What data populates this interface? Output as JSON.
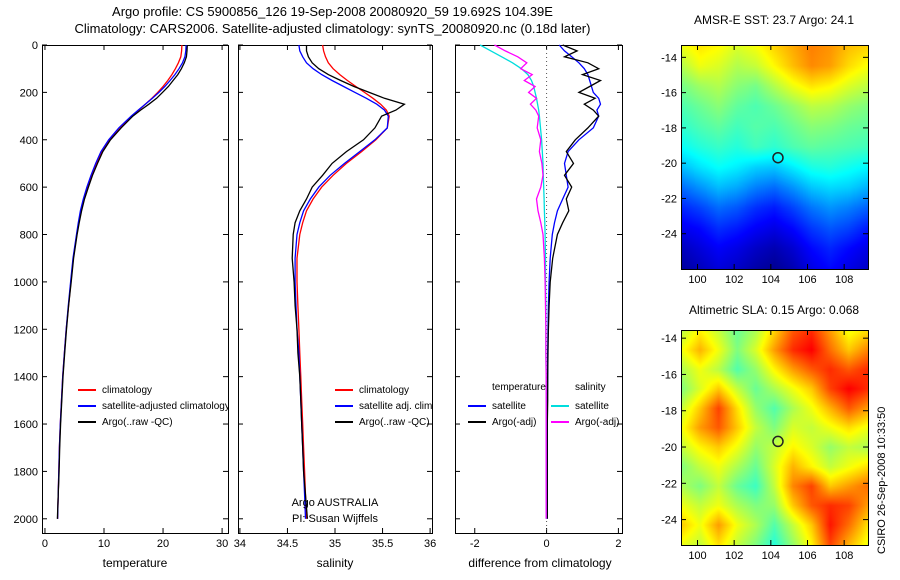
{
  "header": {
    "title_line1": "Argo profile: CS 5900856_126 19-Sep-2008 20080920_59 19.692S 104.39E",
    "title_line2": "Climatology: CARS2006. Satellite-adjusted climatology: synTS_20080920.nc (0.18d later)"
  },
  "annotations": {
    "argo_australia": "Argo AUSTRALIA",
    "pi": "PI: Susan Wijffels"
  },
  "side_note": "CSIRO 26-Sep-2008 10:33:50",
  "chart_data": [
    {
      "id": "temperature-profile",
      "type": "line",
      "xlabel": "temperature",
      "xlim": [
        -0.5,
        31
      ],
      "xticks": [
        0,
        10,
        20,
        30
      ],
      "ylim": [
        0,
        2060
      ],
      "yticks": [
        0,
        200,
        400,
        600,
        800,
        1000,
        1200,
        1400,
        1600,
        1800,
        2000
      ],
      "depths": [
        0,
        25,
        50,
        75,
        100,
        125,
        150,
        175,
        200,
        225,
        250,
        275,
        300,
        350,
        400,
        450,
        500,
        550,
        600,
        650,
        700,
        750,
        800,
        900,
        1000,
        1100,
        1200,
        1300,
        1400,
        1500,
        1600,
        1700,
        1800,
        1900,
        2000
      ],
      "series": [
        {
          "name": "climatology",
          "color": "#ff0000",
          "values": [
            23.2,
            23.15,
            23.0,
            22.6,
            22.1,
            21.5,
            20.8,
            20.0,
            19.1,
            18.1,
            17.0,
            15.9,
            14.8,
            12.8,
            11.0,
            9.7,
            8.7,
            7.9,
            7.2,
            6.6,
            6.1,
            5.7,
            5.4,
            4.8,
            4.4,
            4.0,
            3.6,
            3.3,
            3.0,
            2.8,
            2.6,
            2.45,
            2.35,
            2.25,
            2.15
          ]
        },
        {
          "name": "satellite-adjusted climatology",
          "color": "#0000ff",
          "values": [
            23.9,
            23.85,
            23.7,
            23.3,
            22.7,
            22.0,
            21.2,
            20.3,
            19.3,
            18.2,
            17.0,
            15.8,
            14.6,
            12.5,
            10.8,
            9.5,
            8.6,
            7.8,
            7.1,
            6.5,
            6.0,
            5.65,
            5.35,
            4.75,
            4.35,
            3.95,
            3.6,
            3.3,
            3.0,
            2.8,
            2.6,
            2.45,
            2.35,
            2.25,
            2.15
          ]
        },
        {
          "name": "Argo(..raw -QC)",
          "color": "#000000",
          "values": [
            24.1,
            24.05,
            23.95,
            23.6,
            23.1,
            22.5,
            21.7,
            20.9,
            19.9,
            18.9,
            17.6,
            16.2,
            14.9,
            12.9,
            11.1,
            9.8,
            8.9,
            8.05,
            7.35,
            6.7,
            6.2,
            5.8,
            5.45,
            4.85,
            4.45,
            4.0,
            3.65,
            3.35,
            3.05,
            2.85,
            2.65,
            2.5,
            2.4,
            2.25,
            2.1
          ]
        }
      ],
      "legend": {
        "items": [
          {
            "label": "climatology"
          },
          {
            "label": "satellite-adjusted climatology"
          },
          {
            "label": "Argo(..raw -QC)"
          }
        ]
      }
    },
    {
      "id": "salinity-profile",
      "type": "line",
      "xlabel": "salinity",
      "xlim": [
        33.98,
        36.02
      ],
      "xticks": [
        34,
        34.5,
        35,
        35.5,
        36
      ],
      "ylim": [
        0,
        2060
      ],
      "yticks": [
        0,
        200,
        400,
        600,
        800,
        1000,
        1200,
        1400,
        1600,
        1800,
        2000
      ],
      "depths": [
        0,
        25,
        50,
        75,
        100,
        125,
        150,
        175,
        200,
        225,
        250,
        275,
        300,
        350,
        400,
        450,
        500,
        550,
        600,
        650,
        700,
        750,
        800,
        900,
        1000,
        1100,
        1200,
        1300,
        1400,
        1500,
        1600,
        1700,
        1800,
        1900,
        2000
      ],
      "series": [
        {
          "name": "climatology",
          "color": "#ff0000",
          "values": [
            34.87,
            34.88,
            34.9,
            34.93,
            34.98,
            35.05,
            35.13,
            35.22,
            35.31,
            35.4,
            35.48,
            35.54,
            35.57,
            35.55,
            35.43,
            35.28,
            35.12,
            34.98,
            34.86,
            34.77,
            34.7,
            34.66,
            34.63,
            34.6,
            34.6,
            34.61,
            34.62,
            34.63,
            34.64,
            34.65,
            34.66,
            34.67,
            34.68,
            34.69,
            34.7
          ]
        },
        {
          "name": "satellite adj. clim.",
          "color": "#0000ff",
          "values": [
            34.62,
            34.63,
            34.66,
            34.7,
            34.77,
            34.86,
            34.97,
            35.09,
            35.21,
            35.33,
            35.44,
            35.52,
            35.56,
            35.55,
            35.42,
            35.26,
            35.1,
            34.95,
            34.83,
            34.74,
            34.67,
            34.63,
            34.6,
            34.58,
            34.58,
            34.59,
            34.6,
            34.62,
            34.63,
            34.64,
            34.65,
            34.66,
            34.67,
            34.68,
            34.69
          ]
        },
        {
          "name": "Argo(..raw -QC)",
          "color": "#000000",
          "values": [
            34.7,
            34.7,
            34.72,
            34.76,
            34.83,
            34.93,
            35.06,
            35.2,
            35.36,
            35.52,
            35.73,
            35.64,
            35.49,
            35.42,
            35.3,
            35.12,
            34.97,
            34.87,
            34.76,
            34.7,
            34.63,
            34.58,
            34.56,
            34.55,
            34.57,
            34.58,
            34.6,
            34.61,
            34.63,
            34.64,
            34.65,
            34.66,
            34.67,
            34.69,
            34.71
          ]
        }
      ],
      "legend": {
        "items": [
          {
            "label": "climatology"
          },
          {
            "label": "satellite adj. clim."
          },
          {
            "label": "Argo(..raw -QC)"
          }
        ]
      }
    },
    {
      "id": "difference-from-climatology",
      "type": "line",
      "xlabel": "difference from climatology",
      "xlim": [
        -2.55,
        2.1
      ],
      "xticks": [
        -2,
        0,
        2
      ],
      "ylim": [
        0,
        2060
      ],
      "yticks": [
        0,
        200,
        400,
        600,
        800,
        1000,
        1200,
        1400,
        1600,
        1800,
        2000
      ],
      "zero_line": true,
      "depths": [
        0,
        25,
        50,
        75,
        100,
        125,
        150,
        175,
        200,
        225,
        250,
        275,
        300,
        350,
        400,
        450,
        500,
        550,
        600,
        650,
        700,
        750,
        800,
        900,
        1000,
        1100,
        1200,
        1300,
        1400,
        1500,
        1600,
        1700,
        1800,
        1900,
        2000
      ],
      "series": [
        {
          "name": "temperature satellite",
          "color": "#0000ff",
          "values": [
            0.35,
            0.5,
            0.7,
            0.9,
            1.05,
            1.15,
            1.2,
            1.25,
            1.3,
            1.45,
            1.5,
            1.4,
            1.45,
            1.3,
            0.9,
            0.6,
            0.5,
            0.55,
            0.6,
            0.45,
            0.3,
            0.22,
            0.16,
            0.1,
            0.07,
            0.05,
            0.04,
            0.03,
            0.03,
            0.02,
            0.02,
            0.02,
            0.02,
            0.02,
            0.02
          ]
        },
        {
          "name": "temperature Argo(-adj)",
          "color": "#000000",
          "values": [
            0.45,
            0.85,
            0.5,
            1.15,
            1.45,
            1.0,
            1.5,
            1.2,
            0.9,
            1.35,
            1.05,
            1.3,
            1.45,
            1.15,
            0.8,
            0.55,
            0.75,
            0.5,
            0.7,
            0.55,
            0.62,
            0.45,
            0.3,
            0.17,
            0.1,
            0.07,
            0.05,
            0.04,
            0.03,
            0.03,
            0.02,
            0.02,
            0.02,
            0.02,
            0.02
          ]
        },
        {
          "name": "salinity satellite",
          "color": "#00dddd",
          "values": [
            -1.85,
            -1.55,
            -1.25,
            -0.95,
            -0.7,
            -0.52,
            -0.42,
            -0.36,
            -0.32,
            -0.28,
            -0.25,
            -0.22,
            -0.2,
            -0.17,
            -0.14,
            -0.12,
            -0.1,
            -0.09,
            -0.08,
            -0.07,
            -0.06,
            -0.05,
            -0.04,
            -0.03,
            -0.03,
            -0.02,
            -0.02,
            -0.02,
            -0.01,
            -0.01,
            -0.01,
            -0.01,
            -0.01,
            -0.01,
            -0.01
          ]
        },
        {
          "name": "salinity Argo(-adj)",
          "color": "#ff00ff",
          "values": [
            -1.45,
            -1.15,
            -0.8,
            -0.55,
            -0.72,
            -0.4,
            -0.62,
            -0.32,
            -0.5,
            -0.28,
            -0.45,
            -0.3,
            -0.22,
            -0.26,
            -0.16,
            -0.2,
            -0.13,
            -0.1,
            -0.16,
            -0.28,
            -0.24,
            -0.16,
            -0.1,
            -0.06,
            -0.04,
            -0.03,
            -0.02,
            -0.02,
            -0.01,
            -0.01,
            -0.01,
            -0.01,
            -0.01,
            -0.01,
            -0.01
          ]
        }
      ],
      "legend": {
        "col1_header": "temperature",
        "col2_header": "salinity",
        "col1": [
          {
            "label": "satellite"
          },
          {
            "label": "Argo(-adj)"
          }
        ],
        "col2": [
          {
            "label": "satellite"
          },
          {
            "label": "Argo(-adj)"
          }
        ]
      }
    },
    {
      "id": "sst-map",
      "type": "heatmap",
      "title": "AMSR-E SST: 23.7 Argo: 24.1",
      "xlim": [
        99.1,
        109.3
      ],
      "xticks": [
        100,
        102,
        104,
        106,
        108
      ],
      "ylim": [
        -26.0,
        -13.3
      ],
      "yticks": [
        -14,
        -16,
        -18,
        -20,
        -22,
        -24
      ],
      "vmin": 18.7,
      "vmax": 28.7,
      "marker": {
        "x": 104.39,
        "y": -19.692
      },
      "values": [
        [
          24.8,
          25.2,
          25.0,
          24.6,
          24.9,
          25.4,
          25.8,
          26.2,
          26.0,
          25.6,
          25.4
        ],
        [
          24.2,
          24.8,
          24.6,
          24.2,
          24.4,
          25.0,
          25.6,
          26.1,
          25.9,
          25.3,
          24.9
        ],
        [
          23.6,
          24.0,
          24.2,
          23.8,
          23.6,
          24.2,
          24.8,
          25.2,
          25.0,
          24.6,
          24.3
        ],
        [
          23.2,
          23.5,
          23.8,
          23.4,
          23.2,
          23.5,
          23.9,
          24.3,
          24.2,
          23.9,
          23.7
        ],
        [
          22.9,
          23.2,
          23.4,
          23.1,
          23.3,
          23.2,
          23.5,
          23.8,
          23.7,
          23.5,
          23.4
        ],
        [
          22.5,
          22.8,
          23.0,
          22.8,
          23.1,
          22.9,
          23.2,
          23.4,
          23.3,
          23.2,
          23.1
        ],
        [
          21.8,
          22.2,
          22.5,
          22.3,
          22.0,
          21.9,
          22.3,
          22.7,
          22.8,
          22.6,
          22.4
        ],
        [
          21.0,
          21.4,
          21.8,
          21.6,
          21.2,
          21.0,
          21.4,
          21.9,
          22.1,
          22.0,
          21.7
        ],
        [
          20.3,
          20.6,
          21.0,
          20.8,
          20.4,
          20.2,
          20.6,
          21.1,
          21.4,
          21.2,
          20.9
        ],
        [
          19.8,
          20.0,
          20.4,
          20.2,
          19.9,
          19.7,
          20.0,
          20.5,
          20.8,
          20.6,
          20.2
        ],
        [
          19.3,
          19.6,
          19.9,
          19.7,
          19.4,
          19.2,
          19.5,
          20.0,
          20.3,
          20.0,
          19.7
        ],
        [
          19.0,
          19.3,
          19.6,
          19.4,
          19.1,
          18.9,
          19.2,
          19.7,
          20.0,
          19.7,
          19.4
        ]
      ]
    },
    {
      "id": "sla-map",
      "type": "heatmap",
      "title": "Altimetric SLA: 0.15 Argo: 0.068",
      "xlim": [
        99.1,
        109.3
      ],
      "xticks": [
        100,
        102,
        104,
        106,
        108
      ],
      "ylim": [
        -25.4,
        -13.55
      ],
      "yticks": [
        -14,
        -16,
        -18,
        -20,
        -22,
        -24
      ],
      "vmin": -0.45,
      "vmax": 0.45,
      "marker": {
        "x": 104.39,
        "y": -19.692
      },
      "values": [
        [
          0.05,
          0.12,
          0.06,
          -0.02,
          0.04,
          0.15,
          0.26,
          0.3,
          0.2,
          0.1,
          0.14
        ],
        [
          0.1,
          0.18,
          0.1,
          0.0,
          0.08,
          0.2,
          0.3,
          0.34,
          0.24,
          0.16,
          0.22
        ],
        [
          0.04,
          0.1,
          0.05,
          -0.04,
          0.02,
          0.12,
          0.2,
          0.26,
          0.3,
          0.26,
          0.3
        ],
        [
          0.0,
          0.08,
          0.16,
          0.06,
          -0.02,
          0.04,
          0.1,
          0.16,
          0.28,
          0.34,
          0.3
        ],
        [
          0.06,
          0.16,
          0.28,
          0.14,
          0.02,
          -0.04,
          0.04,
          0.1,
          0.18,
          0.26,
          0.2
        ],
        [
          0.1,
          0.2,
          0.26,
          0.16,
          0.06,
          0.0,
          0.08,
          0.06,
          0.1,
          0.14,
          0.1
        ],
        [
          0.06,
          0.12,
          0.16,
          0.1,
          0.02,
          0.06,
          0.12,
          0.08,
          0.02,
          0.06,
          0.04
        ],
        [
          0.0,
          0.06,
          0.1,
          0.04,
          -0.02,
          0.08,
          0.18,
          0.12,
          0.06,
          0.1,
          0.14
        ],
        [
          0.04,
          0.0,
          0.06,
          -0.02,
          -0.06,
          0.06,
          0.22,
          0.28,
          0.16,
          0.2,
          0.24
        ],
        [
          0.1,
          0.06,
          0.1,
          0.04,
          0.0,
          0.02,
          0.16,
          0.26,
          0.3,
          0.28,
          0.2
        ],
        [
          0.16,
          0.1,
          0.2,
          0.1,
          0.04,
          -0.04,
          0.06,
          0.16,
          0.32,
          0.24,
          0.14
        ],
        [
          0.1,
          0.06,
          0.14,
          0.06,
          0.0,
          -0.08,
          0.02,
          0.12,
          0.28,
          0.18,
          0.1
        ]
      ]
    }
  ]
}
